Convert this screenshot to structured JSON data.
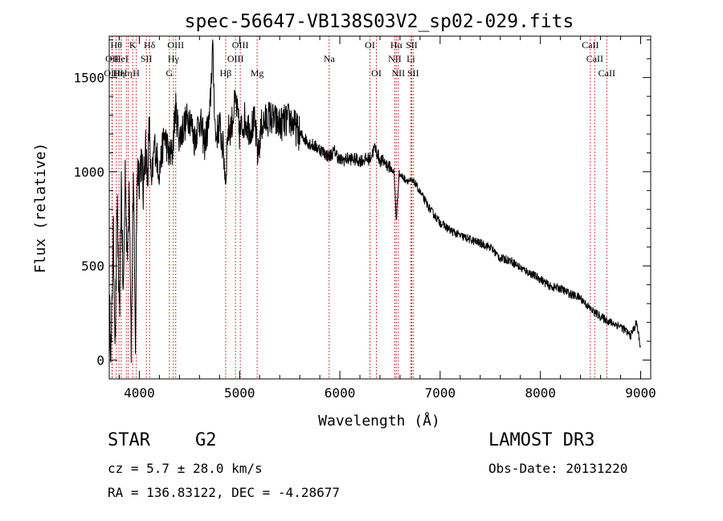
{
  "chart_data": {
    "type": "line",
    "title": "spec-56647-VB138S03V2_sp02-029.fits",
    "xlabel": "Wavelength (Å)",
    "ylabel": "Flux (relative)",
    "xlim": [
      3700,
      9100
    ],
    "ylim": [
      -100,
      1720
    ],
    "xticks": [
      4000,
      5000,
      6000,
      7000,
      8000,
      9000
    ],
    "yticks": [
      0,
      500,
      1000,
      1500
    ],
    "x_minor_step": 200,
    "y_minor_step": 100,
    "series": [
      {
        "name": "spectrum",
        "anchors": [
          [
            3700,
            300
          ],
          [
            3720,
            40
          ],
          [
            3740,
            700
          ],
          [
            3760,
            80
          ],
          [
            3780,
            880
          ],
          [
            3800,
            150
          ],
          [
            3820,
            950
          ],
          [
            3840,
            300
          ],
          [
            3860,
            1040
          ],
          [
            3880,
            500
          ],
          [
            3900,
            980
          ],
          [
            3920,
            50
          ],
          [
            3940,
            1020
          ],
          [
            3960,
            60
          ],
          [
            3980,
            1050
          ],
          [
            4000,
            980
          ],
          [
            4020,
            1080
          ],
          [
            4040,
            880
          ],
          [
            4060,
            1180
          ],
          [
            4080,
            950
          ],
          [
            4100,
            1250
          ],
          [
            4120,
            900
          ],
          [
            4150,
            1150
          ],
          [
            4200,
            1000
          ],
          [
            4250,
            1200
          ],
          [
            4300,
            1080
          ],
          [
            4330,
            1100
          ],
          [
            4360,
            1340
          ],
          [
            4400,
            1180
          ],
          [
            4450,
            1250
          ],
          [
            4500,
            1300
          ],
          [
            4550,
            1170
          ],
          [
            4600,
            1280
          ],
          [
            4650,
            1150
          ],
          [
            4700,
            1270
          ],
          [
            4730,
            1660
          ],
          [
            4760,
            1180
          ],
          [
            4800,
            1250
          ],
          [
            4840,
            1100
          ],
          [
            4861,
            950
          ],
          [
            4880,
            1200
          ],
          [
            4920,
            1250
          ],
          [
            4960,
            1380
          ],
          [
            5000,
            1200
          ],
          [
            5050,
            1280
          ],
          [
            5100,
            1230
          ],
          [
            5150,
            1260
          ],
          [
            5183,
            1080
          ],
          [
            5220,
            1250
          ],
          [
            5300,
            1290
          ],
          [
            5400,
            1250
          ],
          [
            5500,
            1280
          ],
          [
            5600,
            1200
          ],
          [
            5700,
            1150
          ],
          [
            5800,
            1120
          ],
          [
            5890,
            1080
          ],
          [
            5950,
            1110
          ],
          [
            6000,
            1060
          ],
          [
            6100,
            1070
          ],
          [
            6200,
            1060
          ],
          [
            6300,
            1070
          ],
          [
            6350,
            1130
          ],
          [
            6400,
            1060
          ],
          [
            6450,
            1050
          ],
          [
            6500,
            1020
          ],
          [
            6540,
            1000
          ],
          [
            6563,
            740
          ],
          [
            6590,
            990
          ],
          [
            6650,
            960
          ],
          [
            6700,
            950
          ],
          [
            6750,
            940
          ],
          [
            6800,
            890
          ],
          [
            6900,
            800
          ],
          [
            7000,
            730
          ],
          [
            7100,
            690
          ],
          [
            7200,
            660
          ],
          [
            7300,
            640
          ],
          [
            7400,
            620
          ],
          [
            7500,
            600
          ],
          [
            7600,
            540
          ],
          [
            7700,
            530
          ],
          [
            7800,
            490
          ],
          [
            7900,
            460
          ],
          [
            8000,
            430
          ],
          [
            8100,
            390
          ],
          [
            8200,
            380
          ],
          [
            8300,
            350
          ],
          [
            8400,
            330
          ],
          [
            8500,
            270
          ],
          [
            8600,
            230
          ],
          [
            8700,
            200
          ],
          [
            8800,
            180
          ],
          [
            8900,
            130
          ],
          [
            8960,
            200
          ],
          [
            9000,
            60
          ]
        ]
      }
    ],
    "line_marks": [
      {
        "wavelength": 3727,
        "label": "OII",
        "row": 1
      },
      {
        "wavelength": 3730,
        "label": "OIII",
        "row": 2
      },
      {
        "wavelength": 3770,
        "label": "Hθ",
        "row": 0
      },
      {
        "wavelength": 3797,
        "label": "Hη",
        "row": 2
      },
      {
        "wavelength": 3819,
        "label": "HeI",
        "row": 1
      },
      {
        "wavelength": 3870,
        "label": "Hη",
        "row": 2
      },
      {
        "wavelength": 3889,
        "label": "",
        "row": -1
      },
      {
        "wavelength": 3934,
        "label": "K",
        "row": 0
      },
      {
        "wavelength": 3969,
        "label": "H",
        "row": 2
      },
      {
        "wavelength": 4070,
        "label": "SII",
        "row": 1
      },
      {
        "wavelength": 4102,
        "label": "Hδ",
        "row": 0
      },
      {
        "wavelength": 4300,
        "label": "G",
        "row": 2
      },
      {
        "wavelength": 4340,
        "label": "Hγ",
        "row": 1
      },
      {
        "wavelength": 4363,
        "label": "OIII",
        "row": 0
      },
      {
        "wavelength": 4861,
        "label": "Hβ",
        "row": 2
      },
      {
        "wavelength": 4959,
        "label": "OIII",
        "row": 1
      },
      {
        "wavelength": 5007,
        "label": "OIII",
        "row": 0
      },
      {
        "wavelength": 5175,
        "label": "Mg",
        "row": 2
      },
      {
        "wavelength": 5893,
        "label": "Na",
        "row": 1
      },
      {
        "wavelength": 6300,
        "label": "OI",
        "row": 0
      },
      {
        "wavelength": 6364,
        "label": "OI",
        "row": 2
      },
      {
        "wavelength": 6548,
        "label": "NII",
        "row": 1
      },
      {
        "wavelength": 6563,
        "label": "Hα",
        "row": 0
      },
      {
        "wavelength": 6583,
        "label": "NII",
        "row": 2
      },
      {
        "wavelength": 6708,
        "label": "Li",
        "row": 1
      },
      {
        "wavelength": 6716,
        "label": "SII",
        "row": 0
      },
      {
        "wavelength": 6731,
        "label": "SII",
        "row": 2
      },
      {
        "wavelength": 8498,
        "label": "CaII",
        "row": 0
      },
      {
        "wavelength": 8542,
        "label": "CaII",
        "row": 1
      },
      {
        "wavelength": 8662,
        "label": "CaII",
        "row": 2
      }
    ],
    "line_color": "#000000",
    "mark_color": "#cc0000"
  },
  "info": {
    "class": "STAR",
    "subclass": "G2",
    "survey": "LAMOST DR3",
    "cz": "cz = 5.7 ± 28.0 km/s",
    "obs_date": "Obs-Date: 20131220",
    "radec": "RA = 136.83122, DEC =  -4.28677"
  }
}
